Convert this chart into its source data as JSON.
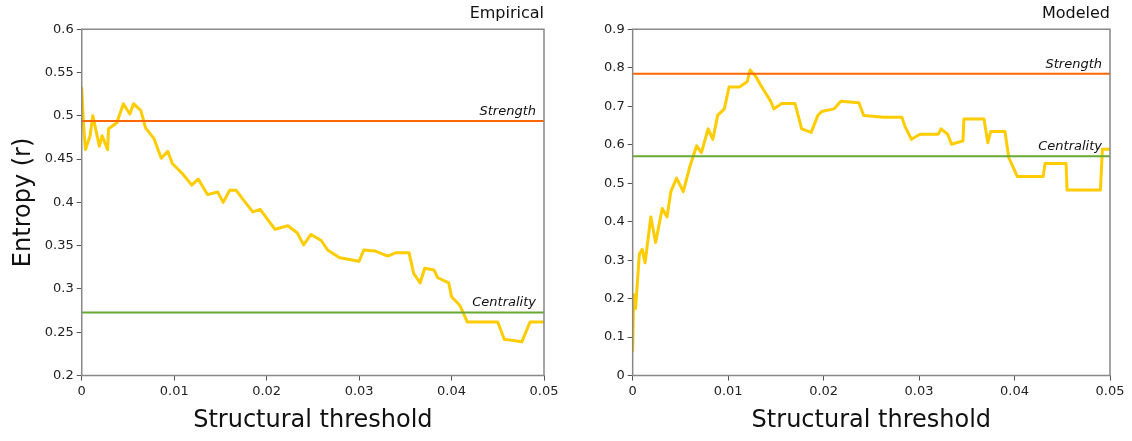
{
  "chart_data": [
    {
      "type": "line",
      "title": "Empirical",
      "xlabel": "Structural threshold",
      "ylabel": "Entropy (r)",
      "xlim": [
        0,
        0.05
      ],
      "xticks": [
        0,
        0.01,
        0.02,
        0.03,
        0.04,
        0.05
      ],
      "ylim": [
        0.2,
        0.6
      ],
      "yticks": [
        0.2,
        0.25,
        0.3,
        0.35,
        0.4,
        0.45,
        0.5,
        0.55,
        0.6
      ],
      "grid": false,
      "legend": false,
      "marker": "none",
      "line_style": "solid",
      "series": [
        {
          "color": "#ffcc00",
          "x": [
            0,
            0.0002,
            0.0004,
            0.0009,
            0.0012,
            0.0019,
            0.0022,
            0.0028,
            0.0029,
            0.0038,
            0.0045,
            0.0052,
            0.0056,
            0.0064,
            0.0069,
            0.0078,
            0.0086,
            0.0093,
            0.0098,
            0.0109,
            0.0119,
            0.0126,
            0.0136,
            0.0147,
            0.0153,
            0.016,
            0.0167,
            0.0174,
            0.0185,
            0.0193,
            0.0202,
            0.0209,
            0.0223,
            0.0233,
            0.024,
            0.0248,
            0.0259,
            0.0266,
            0.0279,
            0.03,
            0.0305,
            0.0317,
            0.0331,
            0.034,
            0.0354,
            0.0359,
            0.0366,
            0.0371,
            0.0381,
            0.0385,
            0.0397,
            0.04,
            0.0409,
            0.0417,
            0.045,
            0.0457,
            0.0476,
            0.0485,
            0.05
          ],
          "values": [
            0.532,
            0.489,
            0.461,
            0.477,
            0.5,
            0.465,
            0.477,
            0.461,
            0.485,
            0.492,
            0.514,
            0.502,
            0.514,
            0.506,
            0.486,
            0.474,
            0.451,
            0.459,
            0.445,
            0.433,
            0.42,
            0.427,
            0.409,
            0.412,
            0.4,
            0.414,
            0.414,
            0.404,
            0.389,
            0.392,
            0.379,
            0.369,
            0.373,
            0.365,
            0.351,
            0.363,
            0.356,
            0.345,
            0.336,
            0.332,
            0.345,
            0.344,
            0.338,
            0.342,
            0.342,
            0.318,
            0.307,
            0.324,
            0.322,
            0.313,
            0.307,
            0.291,
            0.281,
            0.262,
            0.262,
            0.242,
            0.239,
            0.262,
            0.262
          ]
        }
      ],
      "ref_lines": [
        {
          "axis": "y",
          "value": 0.494,
          "label": "Strength",
          "color": "#ff6600"
        },
        {
          "axis": "y",
          "value": 0.273,
          "label": "Centrality",
          "color": "#66aa33"
        }
      ]
    },
    {
      "type": "line",
      "title": "Modeled",
      "xlabel": "Structural threshold",
      "xlim": [
        0,
        0.05
      ],
      "xticks": [
        0,
        0.01,
        0.02,
        0.03,
        0.04,
        0.05
      ],
      "ylim": [
        0,
        0.9
      ],
      "yticks": [
        0,
        0.1,
        0.2,
        0.3,
        0.4,
        0.5,
        0.6,
        0.7,
        0.8,
        0.9
      ],
      "grid": false,
      "legend": false,
      "marker": "none",
      "line_style": "solid",
      "series": [
        {
          "color": "#ffcc00",
          "x": [
            0,
            0.0001,
            0.0003,
            0.0007,
            0.001,
            0.0013,
            0.0019,
            0.0024,
            0.0031,
            0.0036,
            0.004,
            0.0046,
            0.0053,
            0.006,
            0.0067,
            0.0072,
            0.0079,
            0.0084,
            0.0089,
            0.0096,
            0.0101,
            0.0112,
            0.012,
            0.0123,
            0.0129,
            0.0134,
            0.0144,
            0.0148,
            0.0156,
            0.017,
            0.0177,
            0.0187,
            0.0194,
            0.0198,
            0.0211,
            0.0218,
            0.0237,
            0.0242,
            0.0263,
            0.0282,
            0.0285,
            0.0292,
            0.0301,
            0.032,
            0.0323,
            0.033,
            0.0334,
            0.0346,
            0.0347,
            0.0368,
            0.0372,
            0.0375,
            0.039,
            0.0394,
            0.0403,
            0.043,
            0.0432,
            0.0454,
            0.0455,
            0.049,
            0.0492,
            0.05
          ],
          "values": [
            0.064,
            0.21,
            0.174,
            0.315,
            0.328,
            0.293,
            0.412,
            0.346,
            0.434,
            0.412,
            0.478,
            0.513,
            0.478,
            0.544,
            0.597,
            0.579,
            0.641,
            0.614,
            0.676,
            0.693,
            0.75,
            0.75,
            0.764,
            0.794,
            0.777,
            0.755,
            0.715,
            0.693,
            0.707,
            0.707,
            0.641,
            0.632,
            0.676,
            0.686,
            0.693,
            0.713,
            0.709,
            0.676,
            0.671,
            0.671,
            0.649,
            0.614,
            0.627,
            0.627,
            0.641,
            0.627,
            0.601,
            0.61,
            0.667,
            0.667,
            0.605,
            0.634,
            0.634,
            0.566,
            0.517,
            0.517,
            0.551,
            0.551,
            0.482,
            0.482,
            0.588,
            0.588
          ]
        }
      ],
      "ref_lines": [
        {
          "axis": "y",
          "value": 0.784,
          "label": "Strength",
          "color": "#ff6600"
        },
        {
          "axis": "y",
          "value": 0.57,
          "label": "Centrality",
          "color": "#66aa33"
        }
      ]
    }
  ]
}
